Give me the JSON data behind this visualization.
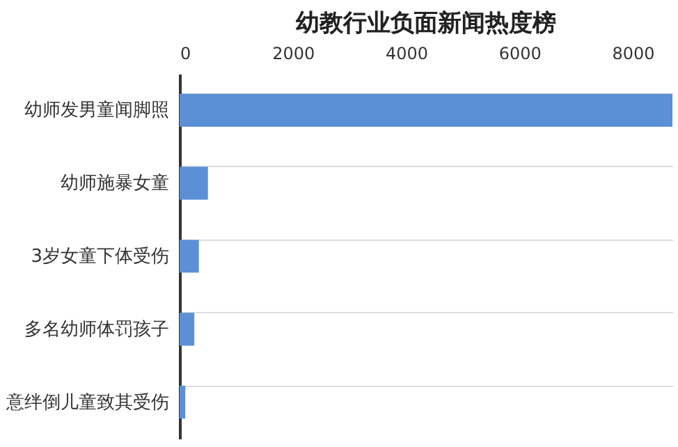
{
  "chart_data": {
    "type": "bar",
    "title": "幼教行业负面新闻热度榜",
    "orientation": "horizontal",
    "categories": [
      "幼师发男童闻脚照",
      "幼师施暴女童",
      "3岁女童下体受伤",
      "多名幼师体罚孩子",
      "意绊倒儿童致其受伤"
    ],
    "values": [
      8700,
      500,
      340,
      260,
      100
    ],
    "color": "#5b8fd6",
    "xlim": [
      0,
      8700
    ],
    "xticks": [
      0,
      2000,
      4000,
      6000,
      8000
    ],
    "grid": "y"
  }
}
